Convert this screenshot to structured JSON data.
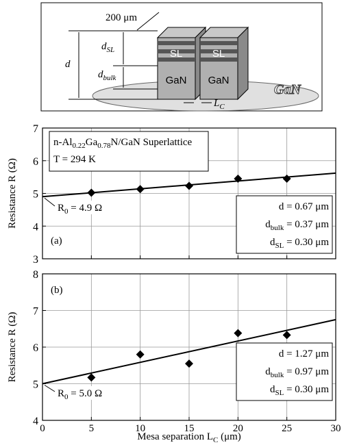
{
  "schematic": {
    "width_label": "200 μm",
    "d_label": "d",
    "d_sl_label": [
      "d",
      "SL"
    ],
    "d_bulk_label": [
      "d",
      "bulk"
    ],
    "blocks": [
      {
        "top": "SL",
        "bottom": "GaN"
      },
      {
        "top": "SL",
        "bottom": "GaN"
      }
    ],
    "substrate": "GaN",
    "separation_label": [
      "L",
      "C"
    ]
  },
  "chart_data": [
    {
      "type": "scatter",
      "label": "(a)",
      "ylabel": "Resistance R (Ω)",
      "xlim": [
        0,
        30
      ],
      "xticks": [
        0,
        5,
        10,
        15,
        20,
        25,
        30
      ],
      "ylim": [
        3,
        7
      ],
      "yticks": [
        3,
        4,
        5,
        6,
        7
      ],
      "grid": true,
      "series": [
        {
          "type": "scatter",
          "x": [
            5,
            10,
            15,
            20,
            25
          ],
          "values": [
            5.02,
            5.13,
            5.23,
            5.45,
            5.45
          ],
          "color": "#000000"
        },
        {
          "type": "line",
          "x": [
            0,
            30
          ],
          "values": [
            4.9,
            5.62
          ],
          "color": "#000000"
        }
      ],
      "material": [
        [
          "n-Al",
          "0.22",
          "Ga",
          "0.78",
          "N/GaN Superlattice"
        ],
        [
          "T = 294 K"
        ]
      ],
      "parameters": [
        [
          "d = 0.67 μm"
        ],
        [
          "d",
          "bulk",
          " = 0.37 μm"
        ],
        [
          "d",
          "SL",
          " = 0.30 μm"
        ]
      ],
      "intercept": [
        "R",
        "0",
        " = 4.9 Ω"
      ]
    },
    {
      "type": "scatter",
      "label": "(b)",
      "ylabel": "Resistance R (Ω)",
      "xlabel": [
        "Mesa separation L",
        "C",
        " (μm)"
      ],
      "xlim": [
        0,
        30
      ],
      "xticks": [
        0,
        5,
        10,
        15,
        20,
        25,
        30
      ],
      "ylim": [
        4,
        8
      ],
      "yticks": [
        4,
        5,
        6,
        7,
        8
      ],
      "grid": true,
      "series": [
        {
          "type": "scatter",
          "x": [
            5,
            10,
            15,
            20,
            25
          ],
          "values": [
            5.17,
            5.8,
            5.55,
            6.38,
            6.33
          ],
          "color": "#000000"
        },
        {
          "type": "line",
          "x": [
            0,
            30
          ],
          "values": [
            5.0,
            6.75
          ],
          "color": "#000000"
        }
      ],
      "parameters": [
        [
          "d = 1.27 μm"
        ],
        [
          "d",
          "bulk",
          " = 0.97 μm"
        ],
        [
          "d",
          "SL",
          " = 0.30 μm"
        ]
      ],
      "intercept": [
        "R",
        "0",
        " = 5.0 Ω"
      ]
    }
  ]
}
